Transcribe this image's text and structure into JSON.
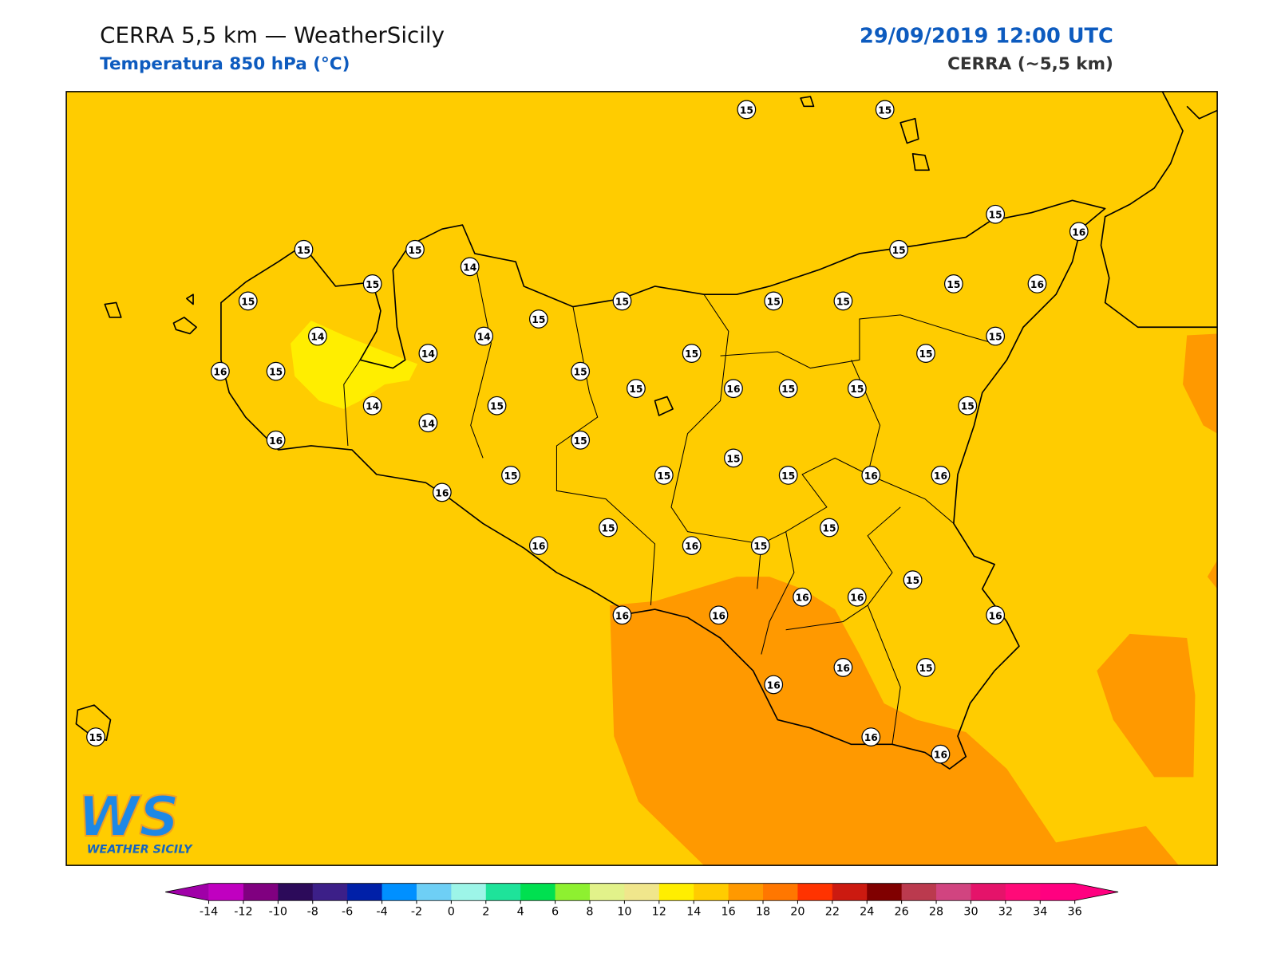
{
  "header": {
    "title": "CERRA 5,5 km — WeatherSicily",
    "subtitle": "Temperatura 850 hPa (°C)",
    "date": "29/09/2019 12:00 UTC",
    "model": "CERRA (~5,5 km)"
  },
  "map": {
    "labels": [
      15,
      15,
      15,
      16,
      15,
      15,
      14,
      15,
      15,
      15,
      16,
      15,
      15,
      15,
      15,
      15,
      14,
      14,
      15,
      14,
      15,
      15,
      16,
      15,
      15,
      15,
      16,
      15,
      15,
      14,
      15,
      15,
      14,
      16,
      15,
      15,
      15,
      15,
      15,
      16,
      16,
      16,
      15,
      15,
      16,
      16,
      15,
      15,
      16,
      16,
      16,
      16,
      16,
      16,
      15,
      16,
      15,
      16,
      16
    ]
  },
  "logo": {
    "mark": "WS",
    "name": "WEATHER SICILY"
  },
  "colorbar": {
    "ticks": [
      -14,
      -12,
      -10,
      -8,
      -6,
      -4,
      -2,
      0,
      2,
      4,
      6,
      8,
      10,
      12,
      14,
      16,
      18,
      20,
      22,
      24,
      26,
      28,
      30,
      32,
      34,
      36
    ],
    "colors": [
      "#c000c0",
      "#800080",
      "#2c0a5a",
      "#3c1f88",
      "#0020a8",
      "#0090ff",
      "#6ecff5",
      "#9df5e8",
      "#1ee39a",
      "#00e050",
      "#8ef030",
      "#e2f28a",
      "#f0e68c",
      "#ffee00",
      "#ffcc00",
      "#ff9900",
      "#ff7700",
      "#ff3300",
      "#cc1a10",
      "#800000",
      "#bb3a4e",
      "#d14480",
      "#e5136a",
      "#ff0a78",
      "#ff0080"
    ],
    "under": "#a000a8",
    "over": "#ff0080"
  }
}
